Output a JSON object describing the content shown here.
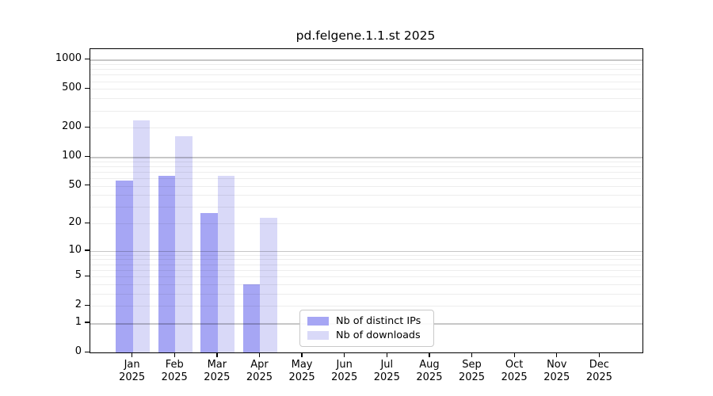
{
  "chart_data": {
    "type": "bar",
    "title": "pd.felgene.1.1.st 2025",
    "categories": [
      "Jan",
      "Feb",
      "Mar",
      "Apr",
      "May",
      "Jun",
      "Jul",
      "Aug",
      "Sep",
      "Oct",
      "Nov",
      "Dec"
    ],
    "x_tick_year": "2025",
    "series": [
      {
        "name": "Nb of distinct IPs",
        "color": "#a6a6f4",
        "values": [
          57,
          63,
          26,
          4,
          0,
          0,
          0,
          0,
          0,
          0,
          0,
          0
        ]
      },
      {
        "name": "Nb of downloads",
        "color": "#d9d9f8",
        "values": [
          239,
          163,
          63,
          23,
          0,
          0,
          0,
          0,
          0,
          0,
          0,
          0
        ]
      }
    ],
    "yscale": "log10(x+1)",
    "ylim": [
      0,
      1284
    ],
    "yticks": [
      0,
      1,
      2,
      5,
      10,
      20,
      50,
      100,
      200,
      500,
      1000
    ],
    "grid": {
      "major": [
        1,
        10,
        100,
        1000
      ],
      "minor": [
        2,
        3,
        4,
        5,
        6,
        7,
        8,
        9,
        20,
        30,
        40,
        50,
        60,
        70,
        80,
        90,
        200,
        300,
        400,
        500,
        600,
        700,
        800,
        900
      ]
    },
    "legend": {
      "position": "lower center, inside plot"
    }
  },
  "colors": {
    "background": "#ffffff",
    "bar_dark": "#a6a6f4",
    "bar_light": "#d9d9f8",
    "grid_major": "rgba(0,0,0,0.22)",
    "grid_minor": "rgba(0,0,0,0.07)",
    "spine": "#000000",
    "text": "#000000",
    "legend_border": "#c9c9c9"
  }
}
